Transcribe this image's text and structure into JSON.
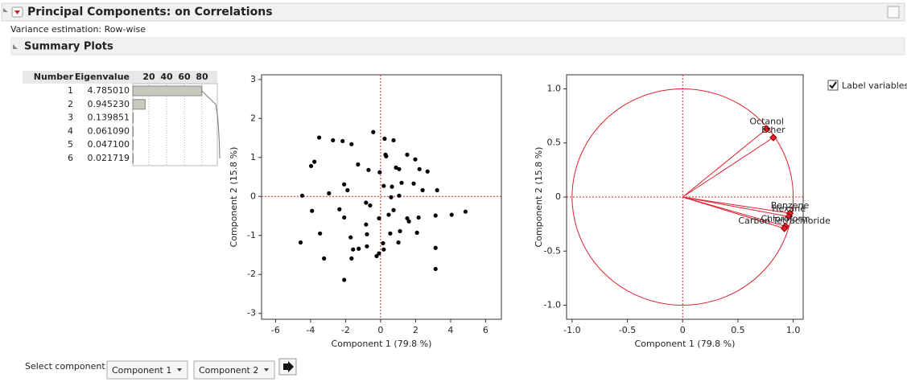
{
  "header": {
    "title": "Principal Components: on Correlations",
    "note": "Variance estimation: Row-wise"
  },
  "section": {
    "title": "Summary Plots"
  },
  "eigen_table": {
    "columns": [
      "Number",
      "Eigenvalue"
    ],
    "rows": [
      [
        "1",
        "4.785010"
      ],
      [
        "2",
        "0.945230"
      ],
      [
        "3",
        "0.139851"
      ],
      [
        "4",
        "0.061090"
      ],
      [
        "5",
        "0.047100"
      ],
      [
        "6",
        "0.021719"
      ]
    ]
  },
  "chart_data": [
    {
      "type": "bar",
      "values": [
        79.75,
        15.75,
        2.33,
        1.02,
        0.79,
        0.36
      ],
      "cumulative_values": [
        79.75,
        95.5,
        97.83,
        98.85,
        99.64,
        100
      ],
      "xlim": [
        0,
        100
      ],
      "xticks": [
        20,
        40,
        60,
        80
      ],
      "color": "#c8c8bc"
    },
    {
      "type": "scatter",
      "xlabel": "Component 1  (79.8 %)",
      "ylabel": "Component 2  (15.8 %)",
      "x": [
        -3.51,
        -2.72,
        -2.17,
        -1.66,
        -0.42,
        0.23,
        0.74,
        -3.97,
        -3.78,
        -1.29,
        0.28,
        0.32,
        1.52,
        1.98,
        2.22,
        1.06,
        0.88,
        -0.69,
        -0.05,
        2.68,
        -2.08,
        -1.89,
        -2.95,
        -4.48,
        0.18,
        0.65,
        1.2,
        1.89,
        2.4,
        3.23,
        1.06,
        0.6,
        -0.83,
        -0.6,
        0.46,
        0.74,
        1.52,
        1.62,
        2.17,
        3.14,
        4.06,
        4.85,
        -3.92,
        -2.35,
        -2.08,
        -0.09,
        -0.83,
        2.08,
        1.11,
        0.55,
        -0.78,
        -3.46,
        -4.57,
        -1.71,
        -1.57,
        -1.25,
        -0.78,
        0.14,
        1.02,
        0.18,
        -0.23,
        -0.09,
        3.14,
        -1.66,
        -3.23,
        3.14,
        -2.08
      ],
      "values": [
        1.51,
        1.44,
        1.42,
        1.34,
        1.65,
        1.48,
        1.44,
        0.78,
        0.89,
        0.82,
        1.07,
        1.03,
        1.07,
        0.95,
        0.7,
        0.7,
        0.74,
        0.68,
        0.62,
        0.64,
        0.31,
        0.16,
        0.08,
        0.02,
        0.27,
        0.25,
        0.35,
        0.33,
        0.16,
        0.16,
        0.02,
        -0.02,
        -0.16,
        -0.23,
        -0.47,
        -0.35,
        -0.56,
        -0.64,
        -0.54,
        -0.49,
        -0.47,
        -0.39,
        -0.37,
        -0.33,
        -0.54,
        -0.56,
        -0.72,
        -0.93,
        -0.89,
        -0.95,
        -0.97,
        -0.95,
        -1.18,
        -1.05,
        -1.36,
        -1.34,
        -1.28,
        -1.2,
        -1.18,
        -1.36,
        -1.53,
        -1.46,
        -1.32,
        -1.59,
        -1.59,
        -1.86,
        -2.14
      ],
      "xlim": [
        -6.8,
        6.9
      ],
      "ylim": [
        -3.15,
        3.12
      ],
      "xticks": [
        -6,
        -4,
        -2,
        0,
        2,
        4,
        6
      ],
      "yticks": [
        -3,
        -2,
        -1,
        0,
        1,
        2,
        3
      ],
      "color": "#000000",
      "reference_lines": true
    },
    {
      "type": "loading",
      "xlabel": "Component 1  (79.8 %)",
      "ylabel": "Component 2  (15.8 %)",
      "labels": [
        "Octanol",
        "Ether",
        "Benzene",
        "Hexane",
        "Chloroform",
        "Carbon Tetrachloride"
      ],
      "x": [
        0.76,
        0.82,
        0.97,
        0.96,
        0.93,
        0.92
      ],
      "values": [
        0.63,
        0.55,
        -0.15,
        -0.18,
        -0.27,
        -0.29
      ],
      "xlim": [
        -1.05,
        1.09
      ],
      "ylim": [
        -1.13,
        1.13
      ],
      "xticks": [
        {
          "value": -1,
          "label": "-1.0"
        },
        {
          "value": -0.5,
          "label": "-0.5"
        },
        0,
        0.5,
        {
          "value": 1,
          "label": "1.0"
        }
      ],
      "yticks": [
        {
          "value": -1,
          "label": "-1.0"
        },
        {
          "value": -0.5,
          "label": "-0.5"
        },
        0,
        0.5,
        {
          "value": 1,
          "label": "1.0"
        }
      ],
      "color": "#e0202e",
      "reference_lines": true
    }
  ],
  "controls": {
    "select_label": "Select component",
    "options": [
      "Component 1",
      "Component 2"
    ],
    "checkbox": "Label variables",
    "checked": true
  }
}
